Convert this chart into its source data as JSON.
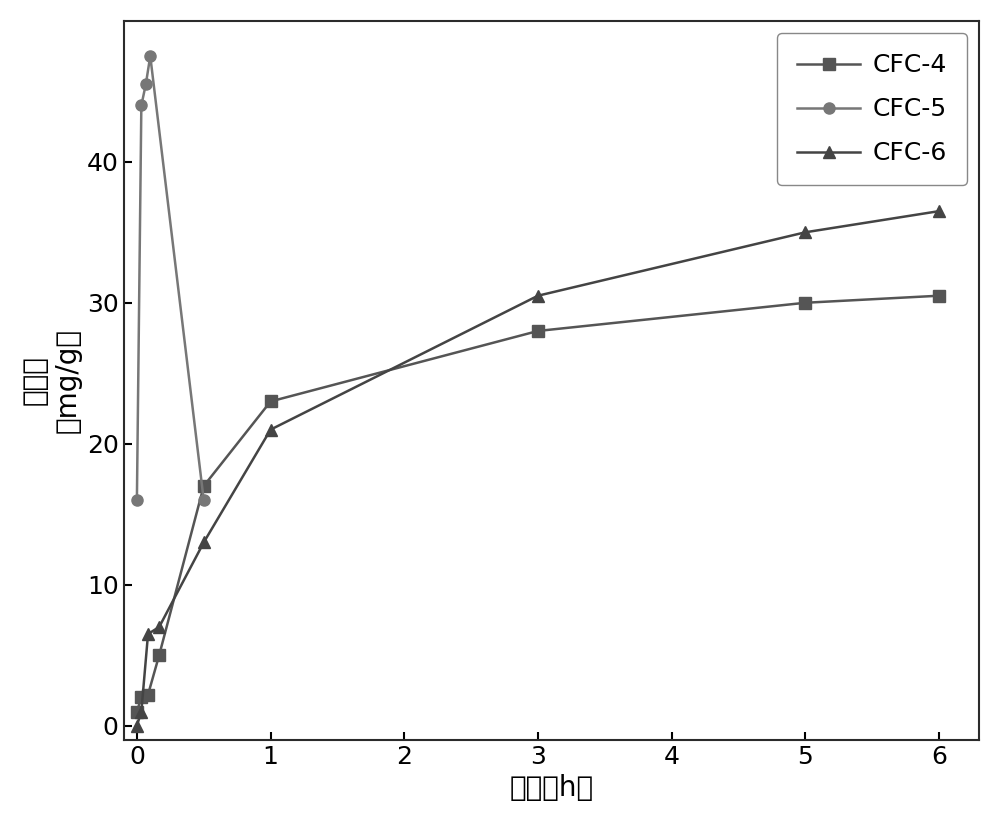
{
  "series": [
    {
      "label": "CFC-4",
      "x": [
        0,
        0.0333,
        0.0833,
        0.1667,
        0.5,
        1,
        3,
        5,
        6
      ],
      "y": [
        1.0,
        2.0,
        2.2,
        5.0,
        17.0,
        23.0,
        28.0,
        30.0,
        30.5
      ],
      "marker": "s",
      "color": "#555555",
      "linewidth": 1.8,
      "markersize": 8
    },
    {
      "label": "CFC-5",
      "x": [
        0,
        0.0333,
        0.0667,
        0.1,
        0.5
      ],
      "y": [
        16.0,
        44.0,
        45.5,
        47.5,
        16.0
      ],
      "marker": "o",
      "color": "#777777",
      "linewidth": 1.8,
      "markersize": 8
    },
    {
      "label": "CFC-6",
      "x": [
        0,
        0.0333,
        0.0833,
        0.1667,
        0.5,
        1,
        3,
        5,
        6
      ],
      "y": [
        0.0,
        1.0,
        6.5,
        7.0,
        13.0,
        21.0,
        30.5,
        35.0,
        36.5
      ],
      "marker": "^",
      "color": "#444444",
      "linewidth": 1.8,
      "markersize": 8
    }
  ],
  "xlabel": "时间（h）",
  "ylabel": "吸附量（mg/g）",
  "ylabel_line1": "吸附量",
  "ylabel_line2": "（mg/g）",
  "xlim": [
    -0.1,
    6.3
  ],
  "ylim": [
    -1,
    50
  ],
  "xticks": [
    0,
    1,
    2,
    3,
    4,
    5,
    6
  ],
  "yticks": [
    0,
    10,
    20,
    30,
    40
  ],
  "legend_loc": "upper right",
  "xlabel_fontsize": 20,
  "ylabel_fontsize": 20,
  "tick_fontsize": 18,
  "legend_fontsize": 18,
  "background_color": "#ffffff"
}
